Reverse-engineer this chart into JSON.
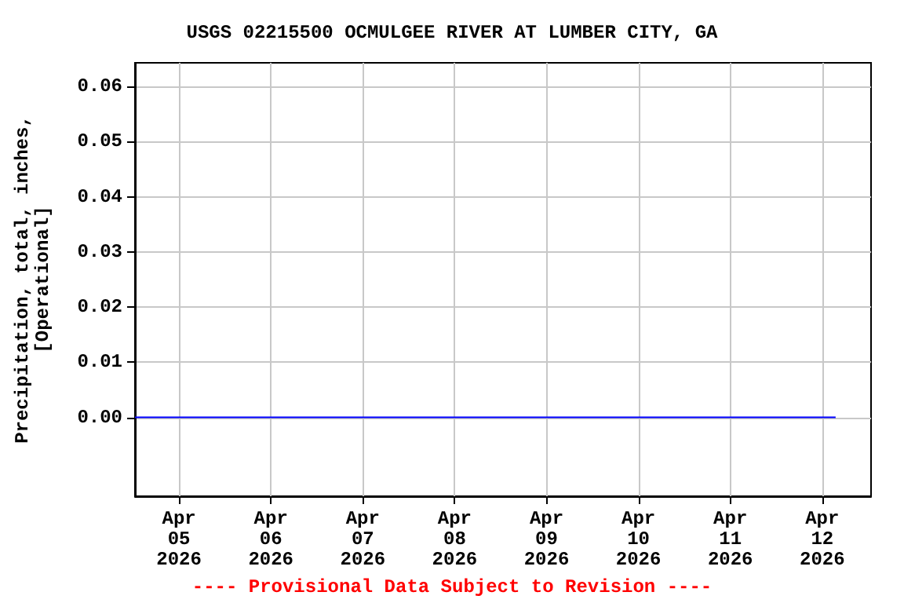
{
  "chart_data": {
    "type": "line",
    "title": "USGS 02215500 OCMULGEE RIVER AT LUMBER CITY, GA",
    "ylabel": "Precipitation, total, inches,\n[Operational]",
    "x": [
      "2026-04-04T12:30",
      "2026-04-06T00:00",
      "2026-04-08T00:00",
      "2026-04-10T00:00",
      "2026-04-12T03:30"
    ],
    "series": [
      {
        "color": "#0000ff",
        "values": [
          0,
          0,
          0,
          0,
          0
        ]
      }
    ],
    "xlim": [
      "2026-04-04T12:30",
      "2026-04-12T12:45"
    ],
    "xticks": [
      {
        "value": "2026-04-05",
        "label": "Apr\n05\n2026"
      },
      {
        "value": "2026-04-06",
        "label": "Apr\n06\n2026"
      },
      {
        "value": "2026-04-07",
        "label": "Apr\n07\n2026"
      },
      {
        "value": "2026-04-08",
        "label": "Apr\n08\n2026"
      },
      {
        "value": "2026-04-09",
        "label": "Apr\n09\n2026"
      },
      {
        "value": "2026-04-10",
        "label": "Apr\n10\n2026"
      },
      {
        "value": "2026-04-11",
        "label": "Apr\n11\n2026"
      },
      {
        "value": "2026-04-12",
        "label": "Apr\n12\n2026"
      }
    ],
    "ylim": [
      -0.0143,
      0.0643
    ],
    "yticks": [
      {
        "value": 0,
        "label": "0.00"
      },
      {
        "value": 0.01,
        "label": "0.01"
      },
      {
        "value": 0.02,
        "label": "0.02"
      },
      {
        "value": 0.03,
        "label": "0.03"
      },
      {
        "value": 0.04,
        "label": "0.04"
      },
      {
        "value": 0.05,
        "label": "0.05"
      },
      {
        "value": 0.06,
        "label": "0.06"
      }
    ],
    "grid": true,
    "annotations": [
      "---- Provisional Data Subject to Revision ----"
    ]
  }
}
